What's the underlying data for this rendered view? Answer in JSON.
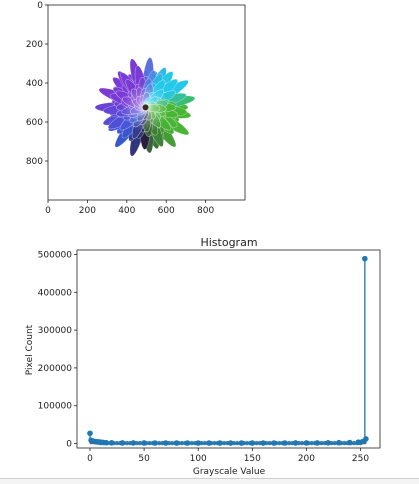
{
  "chart_data": [
    {
      "type": "image",
      "title": "",
      "xlim": [
        0,
        1000
      ],
      "ylim": [
        0,
        1000
      ],
      "x_ticks": [
        0,
        200,
        400,
        600,
        800
      ],
      "y_ticks": [
        0,
        200,
        400,
        600,
        800
      ],
      "image_content": "flower",
      "colors": {
        "purple": "#7a3ad6",
        "blue": "#3b5bd8",
        "cyan": "#24c8e8",
        "green": "#48b534",
        "white": "#f4f6f8",
        "dark": "#2a1c3c"
      }
    },
    {
      "type": "stem",
      "title": "Histogram",
      "xlabel": "Grayscale Value",
      "ylabel": "Pixel Count",
      "xlim": [
        -12,
        268
      ],
      "ylim": [
        -12000,
        512000
      ],
      "x_ticks": [
        0,
        50,
        100,
        150,
        200,
        250
      ],
      "y_ticks": [
        0,
        100000,
        200000,
        300000,
        400000,
        500000
      ],
      "points": [
        [
          0,
          27000
        ],
        [
          1,
          8500
        ],
        [
          2,
          7000
        ],
        [
          3,
          6000
        ],
        [
          4,
          5200
        ],
        [
          5,
          4800
        ],
        [
          6,
          4400
        ],
        [
          7,
          4100
        ],
        [
          8,
          3900
        ],
        [
          9,
          3700
        ],
        [
          10,
          3400
        ],
        [
          12,
          2800
        ],
        [
          15,
          2200
        ],
        [
          20,
          1800
        ],
        [
          30,
          1500
        ],
        [
          40,
          1400
        ],
        [
          50,
          1300
        ],
        [
          60,
          1250
        ],
        [
          70,
          1200
        ],
        [
          80,
          1150
        ],
        [
          90,
          1150
        ],
        [
          100,
          1100
        ],
        [
          110,
          1100
        ],
        [
          120,
          1100
        ],
        [
          130,
          1100
        ],
        [
          140,
          1100
        ],
        [
          150,
          1150
        ],
        [
          160,
          1150
        ],
        [
          170,
          1200
        ],
        [
          180,
          1250
        ],
        [
          190,
          1300
        ],
        [
          200,
          1400
        ],
        [
          210,
          1500
        ],
        [
          220,
          1700
        ],
        [
          230,
          2000
        ],
        [
          240,
          2500
        ],
        [
          248,
          3500
        ],
        [
          252,
          5000
        ],
        [
          254,
          489000
        ],
        [
          255,
          12000
        ]
      ],
      "colors": {
        "stem": "#1f77b4",
        "baseline": "#d62728"
      }
    }
  ]
}
